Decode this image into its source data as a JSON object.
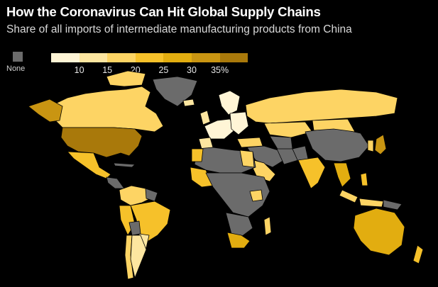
{
  "title": "How the Coronavirus Can Hit Global Supply Chains",
  "subtitle": "Share of all imports of intermediate manufacturing products from China",
  "legend": {
    "none_label": "None",
    "none_color": "#6b6b6b",
    "colors": [
      "#fff5d6",
      "#fde6a0",
      "#fdd464",
      "#f6c12a",
      "#e2ad10",
      "#c99512",
      "#a9790b"
    ],
    "ticks": [
      "10",
      "15",
      "20",
      "25",
      "30",
      "35%"
    ]
  },
  "colors": {
    "background": "#000000",
    "country_border": "#000000"
  }
}
